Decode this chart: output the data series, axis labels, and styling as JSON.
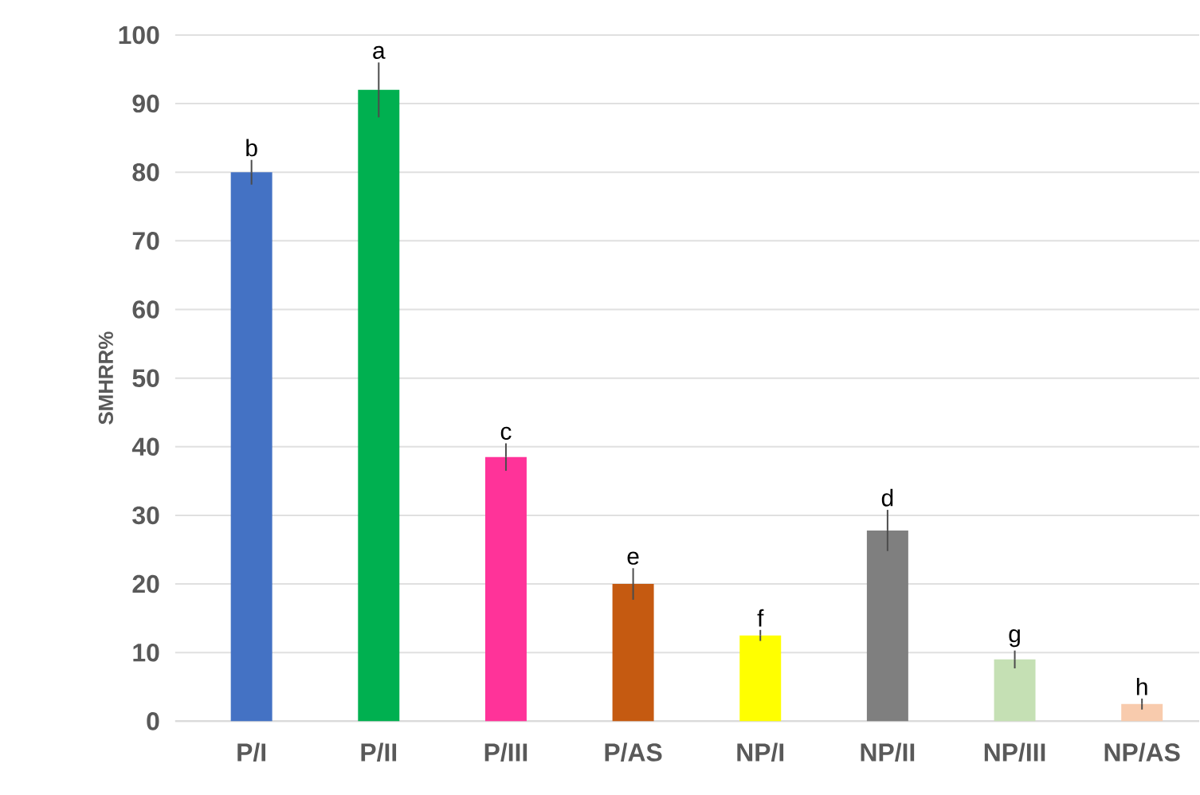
{
  "chart_data": {
    "type": "bar",
    "ylabel": "SMHRR%",
    "categories": [
      "P/I",
      "P/II",
      "P/III",
      "P/AS",
      "NP/I",
      "NP/II",
      "NP/III",
      "NP/AS"
    ],
    "values": [
      80,
      92,
      38.5,
      20,
      12.5,
      27.8,
      9,
      2.5
    ],
    "errors": [
      1.8,
      4,
      2,
      2.3,
      0.8,
      3,
      1.3,
      0.8
    ],
    "colors": [
      "#4472c4",
      "#00b050",
      "#ff3399",
      "#c55a11",
      "#ffff00",
      "#7f7f7f",
      "#c5e0b4",
      "#f8cbad"
    ],
    "ylim": [
      0,
      100
    ],
    "yticks": [
      0,
      10,
      20,
      30,
      40,
      50,
      60,
      70,
      80,
      90,
      100
    ],
    "grid": "y",
    "annotations": [
      {
        "text": "b",
        "x": "P/I",
        "y": 81.8
      },
      {
        "text": "a",
        "x": "P/II",
        "y": 96
      },
      {
        "text": "c",
        "x": "P/III",
        "y": 40.5
      },
      {
        "text": "e",
        "x": "P/AS",
        "y": 22.3
      },
      {
        "text": "f",
        "x": "NP/I",
        "y": 13.3
      },
      {
        "text": "d",
        "x": "NP/II",
        "y": 30.8
      },
      {
        "text": "g",
        "x": "NP/III",
        "y": 10.3
      },
      {
        "text": "h",
        "x": "NP/AS",
        "y": 3.3
      }
    ]
  }
}
